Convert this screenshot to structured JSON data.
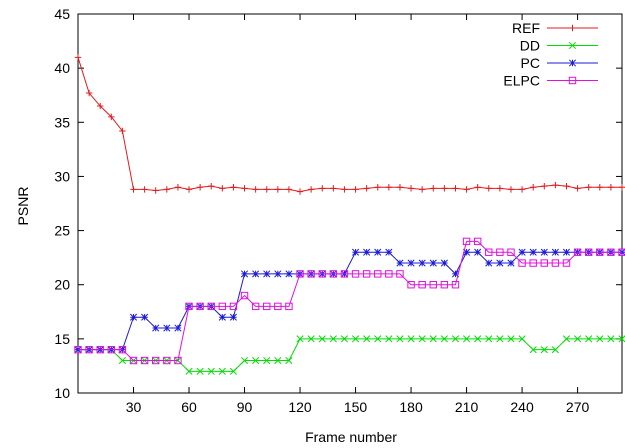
{
  "chart_data": {
    "type": "line",
    "title": "",
    "xlabel": "Frame number",
    "ylabel": "PSNR",
    "xlim": [
      0,
      294
    ],
    "ylim": [
      10,
      45
    ],
    "xticks": [
      30,
      60,
      90,
      120,
      150,
      180,
      210,
      240,
      270
    ],
    "yticks": [
      10,
      15,
      20,
      25,
      30,
      35,
      40,
      45
    ],
    "legend_position": "top-right",
    "grid": false,
    "x": [
      0,
      6,
      12,
      18,
      24,
      30,
      36,
      42,
      48,
      54,
      60,
      66,
      72,
      78,
      84,
      90,
      96,
      102,
      108,
      114,
      120,
      126,
      132,
      138,
      144,
      150,
      156,
      162,
      168,
      174,
      180,
      186,
      192,
      198,
      204,
      210,
      216,
      222,
      228,
      234,
      240,
      246,
      252,
      258,
      264,
      270,
      276,
      282,
      288,
      294
    ],
    "series": [
      {
        "name": "REF",
        "color": "#e41a1c",
        "marker": "plus",
        "values": [
          41.0,
          37.7,
          36.5,
          35.5,
          34.2,
          28.8,
          28.8,
          28.7,
          28.8,
          29.0,
          28.8,
          29.0,
          29.1,
          28.9,
          29.0,
          28.9,
          28.8,
          28.8,
          28.8,
          28.8,
          28.6,
          28.8,
          28.9,
          28.9,
          28.8,
          28.8,
          28.9,
          29.0,
          29.0,
          29.0,
          28.9,
          28.8,
          28.9,
          28.9,
          28.9,
          28.8,
          29.0,
          28.9,
          28.9,
          28.8,
          28.8,
          29.0,
          29.1,
          29.2,
          29.1,
          28.9,
          29.0,
          29.0,
          29.0,
          29.0
        ]
      },
      {
        "name": "DD",
        "color": "#00dd00",
        "marker": "x",
        "values": [
          14,
          14,
          14,
          14,
          13,
          13,
          13,
          13,
          13,
          13,
          12,
          12,
          12,
          12,
          12,
          13,
          13,
          13,
          13,
          13,
          15,
          15,
          15,
          15,
          15,
          15,
          15,
          15,
          15,
          15,
          15,
          15,
          15,
          15,
          15,
          15,
          15,
          15,
          15,
          15,
          15,
          14,
          14,
          14,
          15,
          15,
          15,
          15,
          15,
          15
        ]
      },
      {
        "name": "PC",
        "color": "#1b1bd8",
        "marker": "star",
        "values": [
          14,
          14,
          14,
          14,
          14,
          17,
          17,
          16,
          16,
          16,
          18,
          18,
          18,
          17,
          17,
          21,
          21,
          21,
          21,
          21,
          21,
          21,
          21,
          21,
          21,
          23,
          23,
          23,
          23,
          22,
          22,
          22,
          22,
          22,
          21,
          23,
          23,
          22,
          22,
          22,
          23,
          23,
          23,
          23,
          23,
          23,
          23,
          23,
          23,
          23
        ]
      },
      {
        "name": "ELPC",
        "color": "#e010e0",
        "marker": "square",
        "values": [
          14,
          14,
          14,
          14,
          14,
          13,
          13,
          13,
          13,
          13,
          18,
          18,
          18,
          18,
          18,
          19,
          18,
          18,
          18,
          18,
          21,
          21,
          21,
          21,
          21,
          21,
          21,
          21,
          21,
          21,
          20,
          20,
          20,
          20,
          20,
          24,
          24,
          23,
          23,
          23,
          22,
          22,
          22,
          22,
          22,
          23,
          23,
          23,
          23,
          23
        ]
      }
    ]
  }
}
